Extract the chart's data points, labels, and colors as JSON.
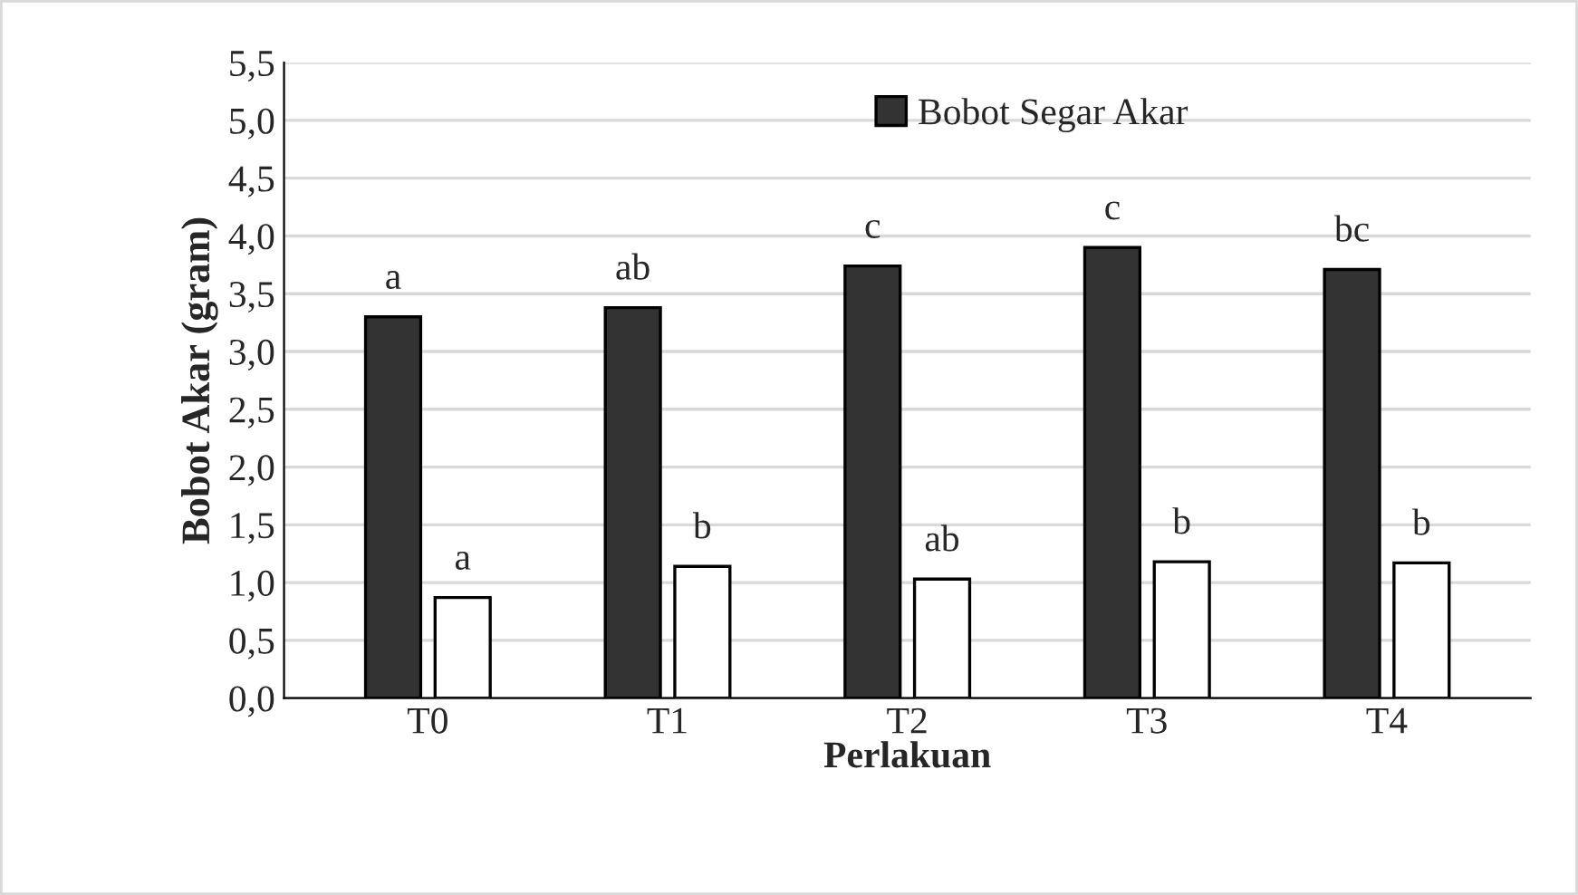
{
  "chart_data": {
    "type": "bar",
    "xlabel": "Perlakuan",
    "ylabel": "Bobot Akar (gram)",
    "categories": [
      "T0",
      "T1",
      "T2",
      "T3",
      "T4"
    ],
    "series": [
      {
        "name": "Bobot Segar Akar",
        "color": "#333333",
        "values": [
          3.3,
          3.38,
          3.74,
          3.9,
          3.71
        ],
        "value_labels": [
          "a",
          "ab",
          "c",
          "c",
          "bc"
        ]
      },
      {
        "color": "#ffffff",
        "values": [
          0.87,
          1.14,
          1.03,
          1.18,
          1.17
        ],
        "value_labels": [
          "a",
          "b",
          "ab",
          "b",
          "b"
        ]
      }
    ],
    "ylim": [
      0,
      5.5
    ],
    "yticks": [
      {
        "value": 0,
        "label": "0,0"
      },
      {
        "value": 0.5,
        "label": "0,5"
      },
      {
        "value": 1,
        "label": "1,0"
      },
      {
        "value": 1.5,
        "label": "1,5"
      },
      {
        "value": 2,
        "label": "2,0"
      },
      {
        "value": 2.5,
        "label": "2,5"
      },
      {
        "value": 3,
        "label": "3,0"
      },
      {
        "value": 3.5,
        "label": "3,5"
      },
      {
        "value": 4,
        "label": "4,0"
      },
      {
        "value": 4.5,
        "label": "4,5"
      },
      {
        "value": 5,
        "label": "5,0"
      },
      {
        "value": 5.5,
        "label": "5,5"
      }
    ],
    "grid": "y",
    "legend": "top"
  }
}
